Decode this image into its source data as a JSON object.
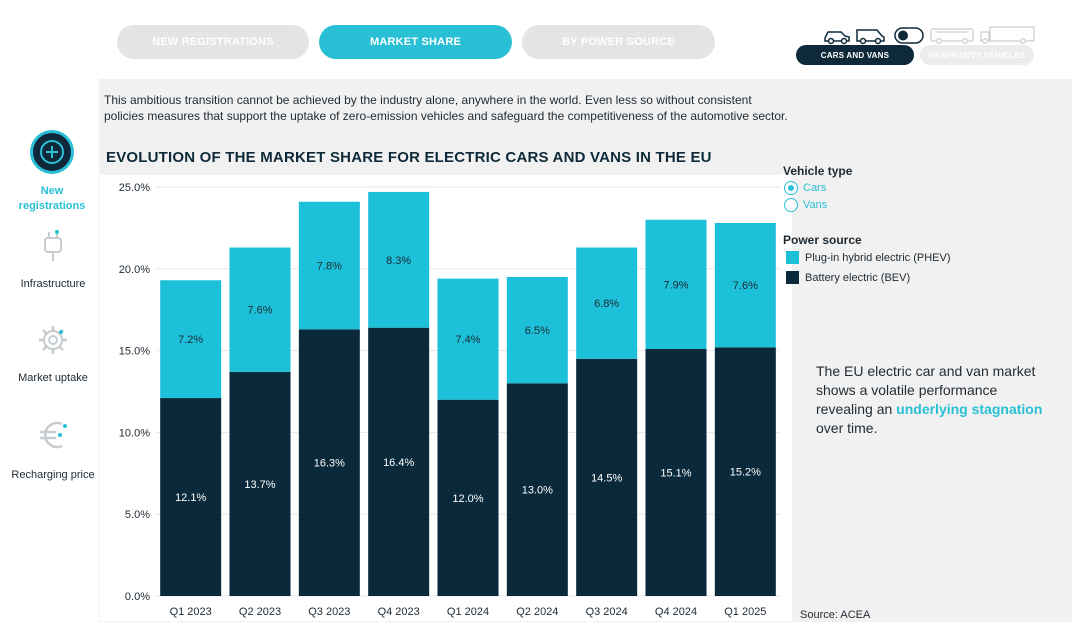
{
  "tabs": [
    {
      "label": "NEW REGISTRATIONS",
      "active": false
    },
    {
      "label": "MARKET SHARE",
      "active": true
    },
    {
      "label": "BY POWER SOURCE",
      "active": false
    }
  ],
  "vehicle_toggle": {
    "cars_and_vans": "CARS AND VANS",
    "heavy_duty": "HEAVY-DUTY VEHICLES"
  },
  "intro_text": "This ambitious transition cannot be achieved by the industry alone, anywhere in the world. Even less so without consistent policies measures that support the uptake of zero-emission vehicles and safeguard the competitiveness of the automotive sector.",
  "nav": [
    {
      "label": "New registrations",
      "active": true,
      "icon": "plus-icon"
    },
    {
      "label": "Infrastructure",
      "active": false,
      "icon": "plug-icon"
    },
    {
      "label": "Market uptake",
      "active": false,
      "icon": "gear-icon"
    },
    {
      "label": "Recharging price",
      "active": false,
      "icon": "euro-icon"
    }
  ],
  "chart_title": "EVOLUTION OF THE MARKET SHARE FOR ELECTRIC CARS AND VANS IN THE EU",
  "legend": {
    "vehicle_type_heading": "Vehicle type",
    "vehicle_options": [
      {
        "label": "Cars",
        "selected": true
      },
      {
        "label": "Vans",
        "selected": false
      }
    ],
    "power_source_heading": "Power source",
    "power_sources": [
      {
        "label": "Plug-in hybrid electric (PHEV)",
        "color": "#1cc1d9"
      },
      {
        "label": "Battery electric (BEV)",
        "color": "#0a2a3b"
      }
    ]
  },
  "note": {
    "text_before": "The EU electric car and van market shows a volatile performance revealing an ",
    "highlight": "underlying stagnation",
    "text_after": " over time."
  },
  "source": "Source: ACEA",
  "chart_data": {
    "type": "bar",
    "stacked": true,
    "categories": [
      "Q1 2023",
      "Q2 2023",
      "Q3 2023",
      "Q4 2023",
      "Q1 2024",
      "Q2 2024",
      "Q3 2024",
      "Q4 2024",
      "Q1 2025"
    ],
    "series": [
      {
        "name": "Battery electric (BEV)",
        "color": "#0a2a3b",
        "values": [
          12.1,
          13.7,
          16.3,
          16.4,
          12.0,
          13.0,
          14.5,
          15.1,
          15.2
        ],
        "labels": [
          "12.1%",
          "13.7%",
          "16.3%",
          "16.4%",
          "12.0%",
          "13.0%",
          "14.5%",
          "15.1%",
          "15.2%"
        ]
      },
      {
        "name": "Plug-in hybrid electric (PHEV)",
        "color": "#1cc1d9",
        "values": [
          7.2,
          7.6,
          7.8,
          8.3,
          7.4,
          6.5,
          6.8,
          7.9,
          7.6
        ],
        "labels": [
          "7.2%",
          "7.6%",
          "7.8%",
          "8.3%",
          "7.4%",
          "6.5%",
          "6.8%",
          "7.9%",
          "7.6%"
        ]
      }
    ],
    "y_ticks": [
      0,
      5,
      10,
      15,
      20,
      25
    ],
    "y_tick_labels": [
      "0.0%",
      "5.0%",
      "10.0%",
      "15.0%",
      "20.0%",
      "25.0%"
    ],
    "ylim": [
      0,
      25
    ],
    "grid": true
  }
}
